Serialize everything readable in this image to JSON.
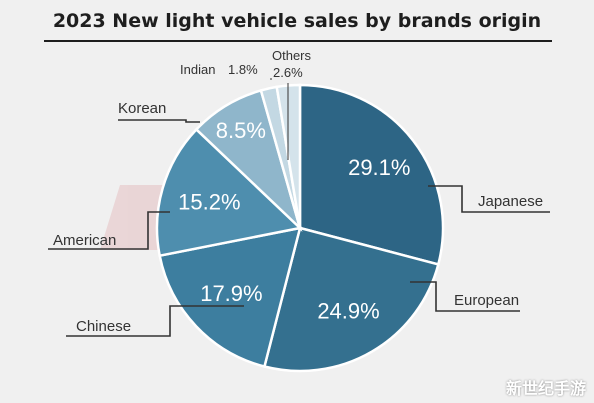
{
  "title": "2023 New light vehicle sales by brands origin",
  "watermark": "新世纪手游",
  "chart_data": {
    "type": "pie",
    "title": "2023 New light vehicle sales by brands origin",
    "slices": [
      {
        "label": "Japanese",
        "value": 29.1,
        "display": "29.1%",
        "color": "#2d6585"
      },
      {
        "label": "European",
        "value": 24.9,
        "display": "24.9%",
        "color": "#34708f"
      },
      {
        "label": "Chinese",
        "value": 17.9,
        "display": "17.9%",
        "color": "#3d7e9f"
      },
      {
        "label": "American",
        "value": 15.2,
        "display": "15.2%",
        "color": "#4e8eae"
      },
      {
        "label": "Korean",
        "value": 8.5,
        "display": "8.5%",
        "color": "#8fb6cb"
      },
      {
        "label": "Indian",
        "value": 1.8,
        "display": "1.8%",
        "color": "#c3d8e3"
      },
      {
        "label": "Others",
        "value": 2.6,
        "display": "2.6%",
        "color": "#d4e3eb"
      }
    ]
  }
}
